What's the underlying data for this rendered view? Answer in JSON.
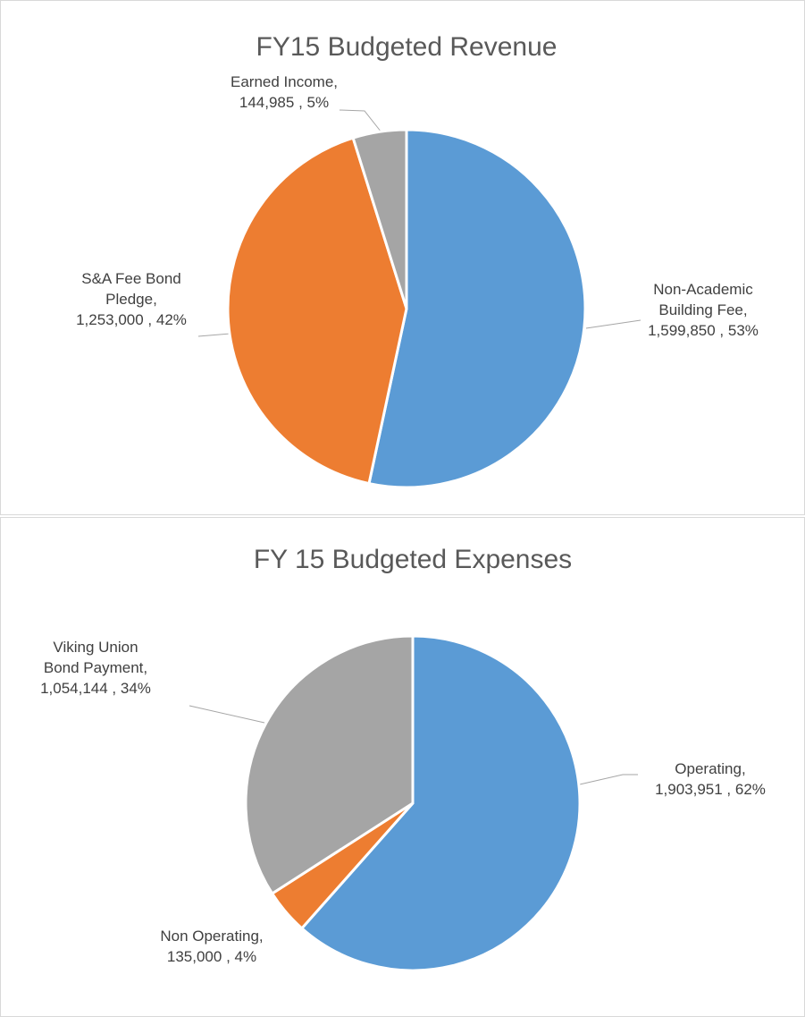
{
  "chart_data": [
    {
      "type": "pie",
      "title": "FY15 Budgeted Revenue",
      "categories": [
        "Non-Academic Building Fee,",
        "S&A Fee Bond Pledge,",
        "Earned Income,"
      ],
      "values": [
        1599850,
        1253000,
        144985
      ],
      "value_labels": [
        "1,599,850 , 53%",
        "1,253,000 , 42%",
        "144,985 , 5%"
      ],
      "colors": [
        "#5b9bd5",
        "#ed7d31",
        "#a5a5a5"
      ]
    },
    {
      "type": "pie",
      "title": "FY 15 Budgeted Expenses",
      "categories": [
        "Operating,",
        "Non Operating,",
        "Viking Union Bond Payment,"
      ],
      "values": [
        1903951,
        135000,
        1054144
      ],
      "value_labels": [
        "1,903,951 , 62%",
        "135,000 , 4%",
        "1,054,144 , 34%"
      ],
      "colors": [
        "#5b9bd5",
        "#ed7d31",
        "#a5a5a5"
      ]
    }
  ]
}
